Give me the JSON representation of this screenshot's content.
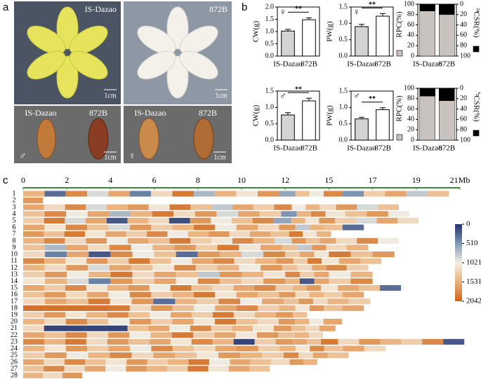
{
  "panel_labels": [
    "a",
    "b",
    "c"
  ],
  "panel_a": {
    "top_left": {
      "title": "IS-Dazao",
      "scale": "1cm"
    },
    "top_right": {
      "title": "872B",
      "scale": "1cm"
    },
    "bottom_left": {
      "labels": [
        "IS-Dazao",
        "872B"
      ],
      "sex": "♂",
      "scale": "1cm"
    },
    "bottom_right": {
      "labels": [
        "IS-Dazao",
        "872B"
      ],
      "sex": "♀",
      "scale": "1cm"
    }
  },
  "chart_data": [
    {
      "type": "bar",
      "sex": "♀",
      "y_label": "CW(g)",
      "categories": [
        "IS-Dazao",
        "872B"
      ],
      "values": [
        1.02,
        1.48
      ],
      "errors": [
        0.07,
        0.08
      ],
      "significance": "**",
      "colors": [
        "#d3d3d3",
        "#ffffff"
      ],
      "ylim": [
        0,
        2
      ],
      "yticks": [
        {
          "value": 0,
          "label": "0.0"
        },
        {
          "value": 0.5,
          "label": "0.5"
        },
        {
          "value": 1,
          "label": "1.0"
        },
        {
          "value": 1.5,
          "label": "1.5"
        },
        {
          "value": 2,
          "label": "2.0"
        }
      ]
    },
    {
      "type": "bar",
      "sex": "♀",
      "y_label": "PW(g)",
      "categories": [
        "IS-Dazao",
        "872B"
      ],
      "values": [
        0.9,
        1.22
      ],
      "errors": [
        0.07,
        0.08
      ],
      "significance": "**",
      "colors": [
        "#d3d3d3",
        "#ffffff"
      ],
      "ylim": [
        0,
        1.5
      ],
      "yticks": [
        {
          "value": 0,
          "label": "0.0"
        },
        {
          "value": 0.5,
          "label": "0.5"
        },
        {
          "value": 1,
          "label": "1.0"
        },
        1.5
      ]
    },
    {
      "type": "stacked_bar",
      "sex": "♀",
      "categories": [
        "IS-Dazao",
        "872B"
      ],
      "series": [
        {
          "name": "RPC(%)",
          "color": "#c8c3bf",
          "values": [
            87,
            80
          ]
        },
        {
          "name": "CSR(%)",
          "color": "#000000",
          "values": [
            13,
            20
          ],
          "axis": "y2"
        }
      ],
      "ylim": [
        0,
        100
      ],
      "yticks": [
        0,
        20,
        40,
        60,
        80,
        100
      ],
      "y2lim": [
        100,
        0
      ],
      "y2ticks": [
        0,
        20,
        40,
        60,
        80,
        100
      ]
    },
    {
      "type": "bar",
      "sex": "♂",
      "y_label": "CW(g)",
      "categories": [
        "IS-Dazao",
        "872B"
      ],
      "values": [
        0.77,
        1.2
      ],
      "errors": [
        0.07,
        0.08
      ],
      "significance": "**",
      "colors": [
        "#d3d3d3",
        "#ffffff"
      ],
      "ylim": [
        0,
        1.5
      ],
      "yticks": [
        {
          "value": 0,
          "label": "0.0"
        },
        {
          "value": 0.5,
          "label": "0.5"
        },
        {
          "value": 1,
          "label": "1.0"
        },
        1.5
      ]
    },
    {
      "type": "bar",
      "sex": "♂",
      "y_label": "PW(g)",
      "categories": [
        "IS-Dazao",
        "872B"
      ],
      "values": [
        0.65,
        0.93
      ],
      "errors": [
        0.05,
        0.06
      ],
      "significance": "**",
      "colors": [
        "#d3d3d3",
        "#ffffff"
      ],
      "ylim": [
        0,
        1.5
      ],
      "yticks": [
        {
          "value": 0,
          "label": "0.0"
        },
        {
          "value": 0.5,
          "label": "0.5"
        },
        {
          "value": 1,
          "label": "1.0"
        },
        1.5
      ]
    },
    {
      "type": "stacked_bar",
      "sex": "♂",
      "categories": [
        "IS-Dazao",
        "872B"
      ],
      "series": [
        {
          "name": "RPC(%)",
          "color": "#c8c3bf",
          "values": [
            85,
            76
          ]
        },
        {
          "name": "CSR(%)",
          "color": "#000000",
          "values": [
            15,
            24
          ],
          "axis": "y2"
        }
      ],
      "ylim": [
        0,
        100
      ],
      "yticks": [
        0,
        20,
        40,
        60,
        80,
        100
      ],
      "y2lim": [
        100,
        0
      ],
      "y2ticks": [
        0,
        20,
        40,
        60,
        80,
        100
      ]
    },
    {
      "type": "heatmap",
      "xticks": [
        0,
        2,
        4,
        6,
        8,
        10,
        12,
        15,
        17,
        19,
        {
          "value": 21,
          "label": "21Mb"
        }
      ],
      "colorbar": {
        "ticks": [
          0,
          510,
          1021,
          1531,
          2042
        ],
        "colors": [
          "#23306b",
          "#7f97b4",
          "#f4efe3",
          "#eab07a",
          "#cd661c"
        ]
      },
      "chromosomes": [
        {
          "name": "1",
          "length": 20.5,
          "values": [
            1500,
            300,
            1800,
            900,
            1600,
            400,
            1200,
            1900,
            700,
            1500,
            1100,
            1700,
            600,
            1400,
            1000,
            1800,
            500,
            1300,
            1600,
            800,
            1400
          ]
        },
        {
          "name": "2",
          "length": 0.9,
          "values": [
            1700
          ]
        },
        {
          "name": "3",
          "length": 18.2,
          "values": [
            1600,
            1200,
            1800,
            900,
            1500,
            1700,
            1100,
            1900,
            1400,
            800,
            1600,
            1300,
            1800,
            1000,
            1500,
            1200,
            1700,
            900,
            1400
          ]
        },
        {
          "name": "4",
          "length": 18.7,
          "values": [
            1400,
            1800,
            1000,
            1600,
            700,
            1500,
            1900,
            1200,
            1700,
            900,
            1600,
            1300,
            500,
            1500,
            1800,
            1100,
            1400,
            1700,
            1000
          ]
        },
        {
          "name": "5",
          "length": 19.1,
          "values": [
            1300,
            1900,
            900,
            1600,
            200,
            1500,
            1200,
            150,
            1700,
            1000,
            1400,
            1800,
            600,
            1500,
            1100,
            1700,
            1300,
            900,
            1600,
            1200
          ]
        },
        {
          "name": "6",
          "length": 16.6,
          "values": [
            1600,
            1100,
            1800,
            1400,
            900,
            1700,
            1300,
            1500,
            1900,
            1000,
            1600,
            1200,
            1700,
            800,
            1500,
            1400,
            300
          ]
        },
        {
          "name": "7",
          "length": 15.1,
          "values": [
            1700,
            1400,
            1900,
            1100,
            1600,
            1300,
            1800,
            1000,
            1500,
            1700,
            1200,
            1600,
            1400,
            1900,
            1100,
            1500
          ]
        },
        {
          "name": "8",
          "length": 18.2,
          "values": [
            1500,
            1800,
            1200,
            1700,
            1000,
            1600,
            1400,
            1900,
            1300,
            1100,
            1800,
            1500,
            900,
            1700,
            1400,
            1600,
            1200,
            1800,
            1000
          ]
        },
        {
          "name": "9",
          "length": 16.8,
          "values": [
            1400,
            700,
            1600,
            1200,
            1800,
            1000,
            1500,
            1700,
            1300,
            1900,
            1100,
            1600,
            1400,
            800,
            1700,
            1200,
            1500
          ]
        },
        {
          "name": "10",
          "length": 18.0,
          "values": [
            1200,
            400,
            1600,
            200,
            1800,
            1000,
            1400,
            300,
            1700,
            1500,
            900,
            1800,
            1300,
            1600,
            1100,
            1900,
            1400,
            1700
          ]
        },
        {
          "name": "11",
          "length": 17.4,
          "values": [
            1800,
            1500,
            1100,
            1700,
            1300,
            1900,
            1400,
            1000,
            1600,
            1800,
            1200,
            1500,
            1700,
            1300,
            1900,
            1100,
            1600,
            1400
          ]
        },
        {
          "name": "12",
          "length": 16.8,
          "values": [
            1500,
            1200,
            1700,
            900,
            1600,
            1400,
            1100,
            1800,
            1300,
            1500,
            1000,
            1700,
            1400,
            1200,
            1600,
            1800,
            1300
          ]
        },
        {
          "name": "13",
          "length": 17.0,
          "values": [
            1300,
            1700,
            1000,
            1500,
            1900,
            1200,
            1600,
            1400,
            800,
            1700,
            1500,
            1100,
            1800,
            1300,
            1600,
            1000,
            1500
          ]
        },
        {
          "name": "14",
          "length": 17.0,
          "values": [
            1100,
            1500,
            900,
            400,
            1700,
            1300,
            1600,
            1000,
            1800,
            1400,
            1200,
            1700,
            1500,
            200,
            1600,
            1300,
            1800
          ]
        },
        {
          "name": "15",
          "length": 18.3,
          "values": [
            1600,
            1300,
            1800,
            1100,
            1500,
            1700,
            1000,
            1900,
            1400,
            1200,
            1600,
            1800,
            1300,
            1500,
            1700,
            1100,
            1600,
            1400,
            300
          ]
        },
        {
          "name": "16",
          "length": 16.6,
          "values": [
            1400,
            1700,
            1200,
            1600,
            1000,
            1800,
            1300,
            1500,
            1900,
            1100,
            1600,
            1400,
            1700,
            1200,
            1500,
            1300,
            1600
          ]
        },
        {
          "name": "17",
          "length": 16.9,
          "values": [
            1200,
            1600,
            1400,
            1900,
            1100,
            1700,
            300,
            1500,
            1300,
            1800,
            1000,
            1600,
            1400,
            1700,
            1200,
            1500,
            1300
          ]
        },
        {
          "name": "18",
          "length": 16.6,
          "values": [
            1950,
            1950,
            1950,
            1950,
            1900,
            1200,
            1700,
            1400,
            1000,
            1600,
            1800,
            1300,
            1500,
            1100,
            1700,
            1400,
            1600
          ]
        },
        {
          "name": "19",
          "length": 13.5,
          "values": [
            1300,
            1700,
            1100,
            1500,
            1800,
            1400,
            1000,
            1600,
            1300,
            1900,
            1200,
            1500,
            1700,
            1400
          ]
        },
        {
          "name": "20",
          "length": 15.6,
          "values": [
            1500,
            1200,
            1800,
            1400,
            1000,
            1700,
            1300,
            1600,
            1100,
            1900,
            1400,
            1200,
            1700,
            1500,
            1000,
            1600
          ]
        },
        {
          "name": "21",
          "length": 15.3,
          "values": [
            1200,
            100,
            100,
            100,
            100,
            1400,
            1600,
            1000,
            1800,
            1300,
            1500,
            1100,
            1700,
            1400,
            1200,
            1600
          ]
        },
        {
          "name": "22",
          "length": 14.6,
          "values": [
            1600,
            1400,
            1800,
            1200,
            1700,
            1000,
            1500,
            1900,
            1300,
            1600,
            1100,
            1700,
            1400,
            1500,
            1200
          ]
        },
        {
          "name": "23",
          "length": 21.2,
          "values": [
            1800,
            1500,
            1900,
            1200,
            1700,
            1400,
            1600,
            1100,
            1800,
            1500,
            100,
            1300,
            1700,
            1600,
            1400,
            1900,
            1200,
            1700,
            1500,
            1300,
            1800,
            200
          ]
        },
        {
          "name": "24",
          "length": 17.6,
          "values": [
            1500,
            1100,
            1700,
            1300,
            1600,
            1000,
            1800,
            1400,
            1200,
            1600,
            1700,
            1300,
            1500,
            1100,
            1800,
            1400,
            1600,
            1200
          ]
        },
        {
          "name": "25",
          "length": 15.9,
          "values": [
            1300,
            1700,
            1000,
            1500,
            1800,
            1200,
            1600,
            1400,
            1100,
            1700,
            1500,
            1300,
            1800,
            1200,
            1600,
            1400
          ]
        },
        {
          "name": "26",
          "length": 14.2,
          "values": [
            1600,
            1200,
            1800,
            1400,
            1100,
            1700,
            1300,
            1500,
            1900,
            1000,
            1600,
            1400,
            1200,
            1700,
            1500
          ]
        },
        {
          "name": "27",
          "length": 11.3,
          "values": [
            1400,
            1800,
            1200,
            1600,
            1000,
            1700,
            1500,
            1300,
            1900,
            1100,
            1600,
            1400
          ]
        },
        {
          "name": "28",
          "length": 2.7,
          "values": [
            1500,
            1200,
            1700
          ]
        }
      ]
    }
  ]
}
